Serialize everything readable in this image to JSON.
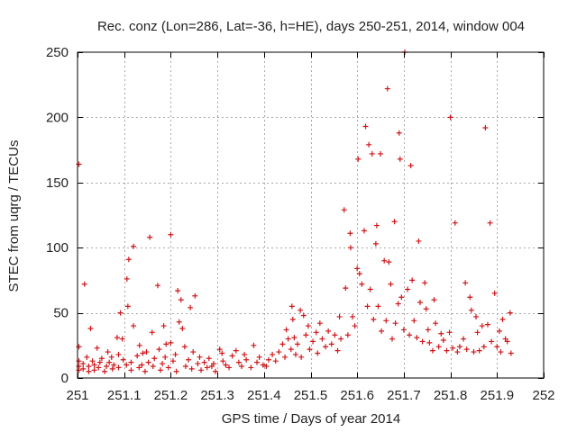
{
  "chart_data": {
    "type": "scatter",
    "title": "Rec. conz (Lon=286, Lat=-36, h=HE), days 250-251, 2014, window 004",
    "xlabel": "GPS time / Days of year 2014",
    "ylabel": "STEC from uqrg / TECUs",
    "xlim": [
      251,
      252
    ],
    "ylim": [
      0,
      250
    ],
    "x_ticks": [
      251,
      251.1,
      251.2,
      251.3,
      251.4,
      251.5,
      251.6,
      251.7,
      251.8,
      251.9,
      252
    ],
    "x_tick_labels": [
      "251",
      "251.1",
      "251.2",
      "251.3",
      "251.4",
      "251.5",
      "251.6",
      "251.7",
      "251.8",
      "251.9",
      "252"
    ],
    "y_ticks": [
      0,
      50,
      100,
      150,
      200,
      250
    ],
    "y_tick_labels": [
      "0",
      "50",
      "100",
      "150",
      "200",
      "250"
    ],
    "grid": true,
    "marker": "+",
    "color": "#d0161a",
    "series": [
      {
        "name": "STEC",
        "points": [
          [
            251.003,
            164
          ],
          [
            251.003,
            24
          ],
          [
            251.003,
            13
          ],
          [
            251.003,
            9
          ],
          [
            251.003,
            6
          ],
          [
            251.012,
            11
          ],
          [
            251.012,
            7
          ],
          [
            251.015,
            72
          ],
          [
            251.02,
            16
          ],
          [
            251.024,
            5
          ],
          [
            251.024,
            9
          ],
          [
            251.028,
            38
          ],
          [
            251.032,
            13
          ],
          [
            251.036,
            6
          ],
          [
            251.036,
            10
          ],
          [
            251.042,
            23
          ],
          [
            251.045,
            8
          ],
          [
            251.048,
            12
          ],
          [
            251.052,
            15
          ],
          [
            251.058,
            5
          ],
          [
            251.062,
            9
          ],
          [
            251.065,
            20
          ],
          [
            251.068,
            12
          ],
          [
            251.073,
            16
          ],
          [
            251.075,
            7
          ],
          [
            251.078,
            10
          ],
          [
            251.085,
            31
          ],
          [
            251.088,
            18
          ],
          [
            251.088,
            8
          ],
          [
            251.092,
            50
          ],
          [
            251.096,
            30
          ],
          [
            251.098,
            14
          ],
          [
            251.105,
            10
          ],
          [
            251.106,
            76
          ],
          [
            251.108,
            55
          ],
          [
            251.11,
            91
          ],
          [
            251.115,
            6
          ],
          [
            251.115,
            12
          ],
          [
            251.12,
            101
          ],
          [
            251.12,
            40
          ],
          [
            251.128,
            17
          ],
          [
            251.132,
            8
          ],
          [
            251.133,
            25
          ],
          [
            251.138,
            10
          ],
          [
            251.14,
            19
          ],
          [
            251.145,
            5
          ],
          [
            251.148,
            20
          ],
          [
            251.152,
            12
          ],
          [
            251.155,
            108
          ],
          [
            251.16,
            35
          ],
          [
            251.162,
            9
          ],
          [
            251.165,
            15
          ],
          [
            251.172,
            71
          ],
          [
            251.175,
            22
          ],
          [
            251.178,
            6
          ],
          [
            251.182,
            11
          ],
          [
            251.185,
            40
          ],
          [
            251.188,
            16
          ],
          [
            251.19,
            26
          ],
          [
            251.195,
            8
          ],
          [
            251.2,
            27
          ],
          [
            251.2,
            110
          ],
          [
            251.205,
            13
          ],
          [
            251.21,
            18
          ],
          [
            251.212,
            5
          ],
          [
            251.215,
            67
          ],
          [
            251.218,
            43
          ],
          [
            251.222,
            60
          ],
          [
            251.225,
            38
          ],
          [
            251.23,
            24
          ],
          [
            251.232,
            9
          ],
          [
            251.238,
            14
          ],
          [
            251.242,
            54
          ],
          [
            251.245,
            7
          ],
          [
            251.248,
            20
          ],
          [
            251.252,
            63
          ],
          [
            251.258,
            11
          ],
          [
            251.262,
            16
          ],
          [
            251.265,
            6
          ],
          [
            251.272,
            12
          ],
          [
            251.278,
            8
          ],
          [
            251.282,
            15
          ],
          [
            251.288,
            9
          ],
          [
            251.292,
            11
          ],
          [
            251.296,
            5
          ],
          [
            251.305,
            22
          ],
          [
            251.31,
            19
          ],
          [
            251.312,
            13
          ],
          [
            251.318,
            10
          ],
          [
            251.325,
            8
          ],
          [
            251.332,
            17
          ],
          [
            251.34,
            21
          ],
          [
            251.346,
            12
          ],
          [
            251.352,
            9
          ],
          [
            251.358,
            18
          ],
          [
            251.362,
            14
          ],
          [
            251.372,
            8
          ],
          [
            251.378,
            25
          ],
          [
            251.385,
            12
          ],
          [
            251.39,
            16
          ],
          [
            251.398,
            10
          ],
          [
            251.405,
            9
          ],
          [
            251.41,
            14
          ],
          [
            251.418,
            18
          ],
          [
            251.425,
            13
          ],
          [
            251.432,
            20
          ],
          [
            251.44,
            26
          ],
          [
            251.445,
            16
          ],
          [
            251.448,
            37
          ],
          [
            251.452,
            30
          ],
          [
            251.458,
            22
          ],
          [
            251.46,
            55
          ],
          [
            251.462,
            45
          ],
          [
            251.465,
            31
          ],
          [
            251.468,
            18
          ],
          [
            251.472,
            26
          ],
          [
            251.478,
            52
          ],
          [
            251.48,
            16
          ],
          [
            251.485,
            48
          ],
          [
            251.49,
            33
          ],
          [
            251.495,
            40
          ],
          [
            251.498,
            22
          ],
          [
            251.505,
            28
          ],
          [
            251.512,
            35
          ],
          [
            251.515,
            19
          ],
          [
            251.52,
            42
          ],
          [
            251.525,
            30
          ],
          [
            251.532,
            24
          ],
          [
            251.538,
            36
          ],
          [
            251.545,
            26
          ],
          [
            251.552,
            33
          ],
          [
            251.558,
            21
          ],
          [
            251.562,
            47
          ],
          [
            251.565,
            30
          ],
          [
            251.572,
            129
          ],
          [
            251.575,
            69
          ],
          [
            251.58,
            33
          ],
          [
            251.585,
            111
          ],
          [
            251.586,
            100
          ],
          [
            251.59,
            47
          ],
          [
            251.595,
            40
          ],
          [
            251.6,
            84
          ],
          [
            251.602,
            168
          ],
          [
            251.605,
            80
          ],
          [
            251.61,
            72
          ],
          [
            251.615,
            113
          ],
          [
            251.618,
            193
          ],
          [
            251.622,
            55
          ],
          [
            251.625,
            179
          ],
          [
            251.628,
            68
          ],
          [
            251.632,
            172
          ],
          [
            251.635,
            45
          ],
          [
            251.64,
            103
          ],
          [
            251.642,
            117
          ],
          [
            251.645,
            55
          ],
          [
            251.65,
            172
          ],
          [
            251.652,
            36
          ],
          [
            251.658,
            90
          ],
          [
            251.662,
            44
          ],
          [
            251.665,
            222
          ],
          [
            251.668,
            89
          ],
          [
            251.672,
            72
          ],
          [
            251.675,
            30
          ],
          [
            251.68,
            120
          ],
          [
            251.682,
            42
          ],
          [
            251.688,
            57
          ],
          [
            251.69,
            188
          ],
          [
            251.692,
            168
          ],
          [
            251.695,
            62
          ],
          [
            251.7,
            37
          ],
          [
            251.702,
            250
          ],
          [
            251.708,
            68
          ],
          [
            251.712,
            33
          ],
          [
            251.715,
            163
          ],
          [
            251.718,
            75
          ],
          [
            251.722,
            44
          ],
          [
            251.728,
            31
          ],
          [
            251.732,
            105
          ],
          [
            251.735,
            58
          ],
          [
            251.74,
            28
          ],
          [
            251.745,
            73
          ],
          [
            251.748,
            53
          ],
          [
            251.752,
            37
          ],
          [
            251.755,
            27
          ],
          [
            251.762,
            21
          ],
          [
            251.765,
            60
          ],
          [
            251.768,
            42
          ],
          [
            251.775,
            24
          ],
          [
            251.78,
            34
          ],
          [
            251.785,
            29
          ],
          [
            251.792,
            21
          ],
          [
            251.798,
            35
          ],
          [
            251.8,
            200
          ],
          [
            251.805,
            23
          ],
          [
            251.81,
            119
          ],
          [
            251.815,
            20
          ],
          [
            251.82,
            24
          ],
          [
            251.828,
            30
          ],
          [
            251.832,
            73
          ],
          [
            251.835,
            22
          ],
          [
            251.842,
            62
          ],
          [
            251.845,
            52
          ],
          [
            251.85,
            20
          ],
          [
            251.855,
            47
          ],
          [
            251.858,
            35
          ],
          [
            251.862,
            21
          ],
          [
            251.868,
            40
          ],
          [
            251.872,
            24
          ],
          [
            251.875,
            192
          ],
          [
            251.88,
            41
          ],
          [
            251.885,
            119
          ],
          [
            251.888,
            28
          ],
          [
            251.895,
            65
          ],
          [
            251.9,
            24
          ],
          [
            251.905,
            36
          ],
          [
            251.908,
            20
          ],
          [
            251.912,
            45
          ],
          [
            251.918,
            30
          ],
          [
            251.922,
            28
          ],
          [
            251.928,
            50
          ],
          [
            251.93,
            19
          ]
        ]
      }
    ]
  }
}
